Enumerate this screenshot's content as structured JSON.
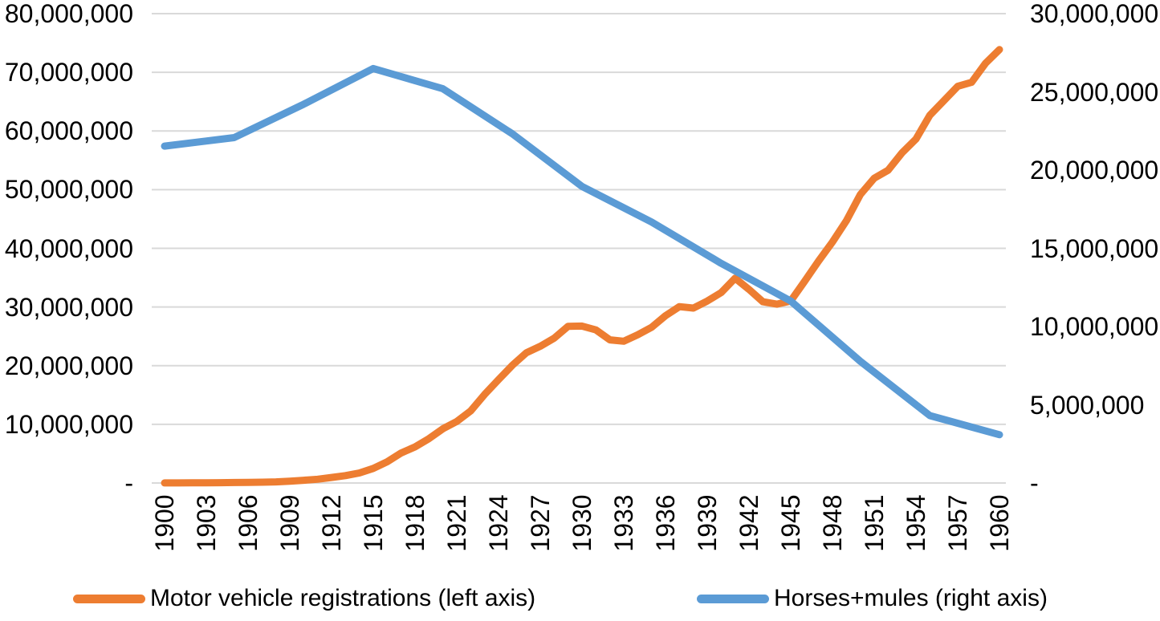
{
  "chart_data": {
    "type": "line",
    "title": "",
    "xlabel": "",
    "ylabel_left": "",
    "ylabel_right": "",
    "grid": "horizontal-only",
    "legend_position": "bottom",
    "x_range": [
      1900,
      1960
    ],
    "x_tick_labels": [
      "1900",
      "1903",
      "1906",
      "1909",
      "1912",
      "1915",
      "1918",
      "1921",
      "1924",
      "1927",
      "1930",
      "1933",
      "1936",
      "1939",
      "1942",
      "1945",
      "1948",
      "1951",
      "1954",
      "1957",
      "1960"
    ],
    "left_axis": {
      "ylim": [
        0,
        80000000
      ],
      "gridline_step": 10000000,
      "tick_labels": [
        "80,000,000",
        "70,000,000",
        "60,000,000",
        "50,000,000",
        "40,000,000",
        "30,000,000",
        "20,000,000",
        "10,000,000",
        "-"
      ]
    },
    "right_axis": {
      "ylim": [
        0,
        30000000
      ],
      "label_step": 5000000,
      "tick_labels": [
        "30,000,000",
        "25,000,000",
        "20,000,000",
        "15,000,000",
        "10,000,000",
        "5,000,000",
        "-"
      ]
    },
    "series": [
      {
        "name": "Motor vehicle registrations (left axis)",
        "axis": "left",
        "color": "#ED7D31",
        "x": [
          1900,
          1901,
          1902,
          1903,
          1904,
          1905,
          1906,
          1907,
          1908,
          1909,
          1910,
          1911,
          1912,
          1913,
          1914,
          1915,
          1916,
          1917,
          1918,
          1919,
          1920,
          1921,
          1922,
          1923,
          1924,
          1925,
          1926,
          1927,
          1928,
          1929,
          1930,
          1931,
          1932,
          1933,
          1934,
          1935,
          1936,
          1937,
          1938,
          1939,
          1940,
          1941,
          1942,
          1943,
          1944,
          1945,
          1946,
          1947,
          1948,
          1949,
          1950,
          1951,
          1952,
          1953,
          1954,
          1955,
          1956,
          1957,
          1958,
          1959,
          1960
        ],
        "values": [
          8000,
          15000,
          23000,
          33000,
          55000,
          79000,
          108000,
          143000,
          198000,
          312000,
          469000,
          639000,
          944000,
          1258000,
          1711000,
          2491000,
          3617000,
          5118000,
          6160000,
          7565000,
          9239000,
          10494000,
          12274000,
          15102000,
          17613000,
          20069000,
          22200000,
          23303000,
          24689000,
          26705000,
          26750000,
          26088000,
          24391000,
          24159000,
          25262000,
          26546000,
          28507000,
          30059000,
          29817000,
          31010000,
          32453000,
          34894000,
          33004000,
          30889000,
          30479000,
          31035000,
          34373000,
          37841000,
          41085000,
          44690000,
          49162000,
          51949000,
          53301000,
          56288000,
          58624000,
          62689000,
          65154000,
          67613000,
          68296000,
          71545000,
          73869000
        ]
      },
      {
        "name": "Horses+mules (right axis)",
        "axis": "right",
        "color": "#5B9BD5",
        "x": [
          1900,
          1905,
          1910,
          1915,
          1920,
          1925,
          1930,
          1935,
          1940,
          1945,
          1950,
          1955,
          1960
        ],
        "values": [
          21532000,
          22077000,
          24211000,
          26493000,
          25199000,
          22317000,
          18954000,
          16683000,
          14040000,
          11629000,
          7781000,
          4309000,
          3089000
        ]
      }
    ]
  },
  "legend": {
    "items": [
      {
        "label": "Motor vehicle registrations (left axis)",
        "color": "#ED7D31"
      },
      {
        "label": "Horses+mules (right axis)",
        "color": "#5B9BD5"
      }
    ]
  },
  "colors": {
    "background": "#FFFFFF",
    "gridline": "#D9D9D9",
    "axis_text": "#000000",
    "series_orange": "#ED7D31",
    "series_blue": "#5B9BD5"
  }
}
